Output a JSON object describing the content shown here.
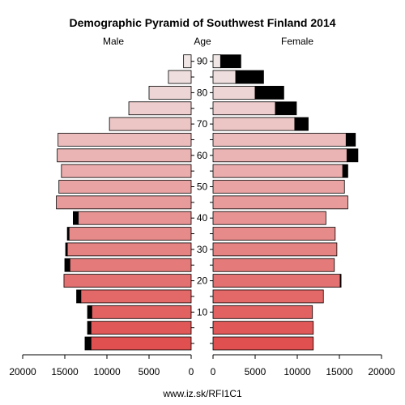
{
  "chart_data": {
    "type": "bar",
    "title": "Demographic Pyramid of Southwest Finland 2014",
    "left_label": "Male",
    "center_label": "Age",
    "right_label": "Female",
    "source": "www.iz.sk/RFI1C1",
    "x_ticks": [
      "20000",
      "15000",
      "10000",
      "5000",
      "0",
      "5000",
      "10000",
      "15000",
      "20000"
    ],
    "age_ticks": [
      "10",
      "20",
      "30",
      "40",
      "50",
      "60",
      "70",
      "80",
      "90"
    ],
    "xlim": [
      0,
      20000
    ],
    "age_groups": [
      "0-4",
      "5-9",
      "10-14",
      "15-19",
      "20-24",
      "25-29",
      "30-34",
      "35-39",
      "40-44",
      "45-49",
      "50-54",
      "55-59",
      "60-64",
      "65-69",
      "70-74",
      "75-79",
      "80-84",
      "85-89",
      "90+"
    ],
    "series": [
      {
        "name": "Male",
        "values": [
          11900,
          11900,
          11800,
          13100,
          15100,
          14400,
          14700,
          14500,
          13400,
          16000,
          15700,
          15400,
          15900,
          15800,
          9700,
          7400,
          5000,
          2700,
          900
        ],
        "excess": [
          700,
          400,
          500,
          500,
          0,
          600,
          200,
          200,
          600,
          0,
          0,
          0,
          0,
          0,
          0,
          0,
          0,
          0,
          0
        ]
      },
      {
        "name": "Female",
        "values": [
          11900,
          11900,
          11800,
          13100,
          15100,
          14400,
          14700,
          14500,
          13400,
          16000,
          15600,
          15400,
          15900,
          15800,
          9700,
          7400,
          5000,
          2700,
          900
        ],
        "excess": [
          0,
          0,
          0,
          0,
          100,
          0,
          0,
          0,
          0,
          0,
          0,
          600,
          1300,
          1100,
          1600,
          2500,
          3400,
          3300,
          2400
        ]
      }
    ],
    "colors": {
      "young": "#e05050",
      "old": "#f0e6e6",
      "excess": "#000000",
      "axis": "#000000"
    }
  }
}
